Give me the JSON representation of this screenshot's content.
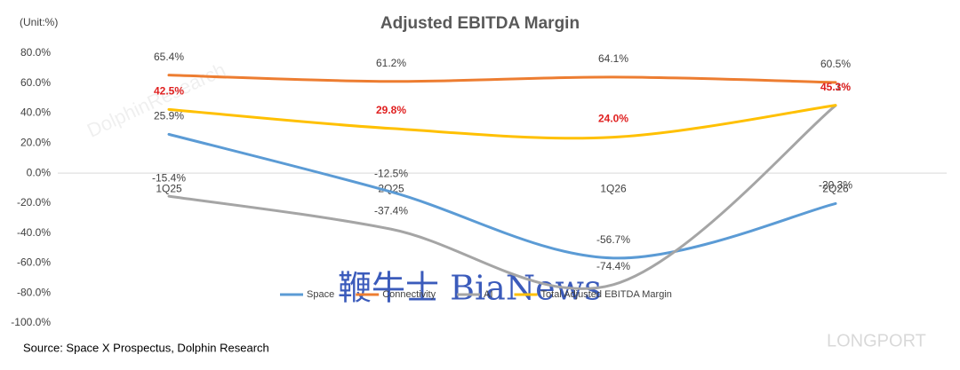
{
  "chart_data": {
    "type": "line",
    "title": "Adjusted EBITDA Margin",
    "unit_label": "(Unit:%)",
    "source": "Source: Space X Prospectus, Dolphin Research",
    "watermarks": [
      "DolphinResearch",
      "鞭牛士 BiaNews",
      "LONGPORT"
    ],
    "categories": [
      "1Q25",
      "2Q25",
      "1Q26",
      "2Q26"
    ],
    "series": [
      {
        "name": "Space",
        "color": "#5b9bd5",
        "values": [
          25.9,
          -12.5,
          -56.7,
          -20.3
        ],
        "value_labels": [
          "25.9%",
          "-12.5%",
          "-56.7%",
          "-20.3%"
        ]
      },
      {
        "name": "Connectivity",
        "color": "#ed7d31",
        "values": [
          65.4,
          61.2,
          64.1,
          60.5
        ],
        "value_labels": [
          "65.4%",
          "61.2%",
          "64.1%",
          "60.5%"
        ]
      },
      {
        "name": "AI",
        "color": "#a5a5a5",
        "values": [
          -15.4,
          -37.4,
          -74.4,
          45.1
        ],
        "value_labels": [
          "-15.4%",
          "-37.4%",
          "-74.4%",
          "45.1%"
        ]
      },
      {
        "name": "Total Adjusted EBITDA Margin",
        "color": "#ffc000",
        "label_color": "#e02020",
        "values": [
          42.5,
          29.8,
          24.0,
          45.3
        ],
        "value_labels": [
          "42.5%",
          "29.8%",
          "24.0%",
          "45.3%"
        ]
      }
    ],
    "ylim": [
      -100,
      80
    ],
    "yticks": [
      {
        "value": -100,
        "label": "-100.0%"
      },
      {
        "value": -80,
        "label": "-80.0%"
      },
      {
        "value": -60,
        "label": "-60.0%"
      },
      {
        "value": -40,
        "label": "-40.0%"
      },
      {
        "value": -20,
        "label": "-20.0%"
      },
      {
        "value": 0,
        "label": "0.0%"
      },
      {
        "value": 20,
        "label": "20.0%"
      },
      {
        "value": 40,
        "label": "40.0%"
      },
      {
        "value": 60,
        "label": "60.0%"
      },
      {
        "value": 80,
        "label": "80.0%"
      }
    ],
    "grid": false,
    "legend": "bottom"
  }
}
